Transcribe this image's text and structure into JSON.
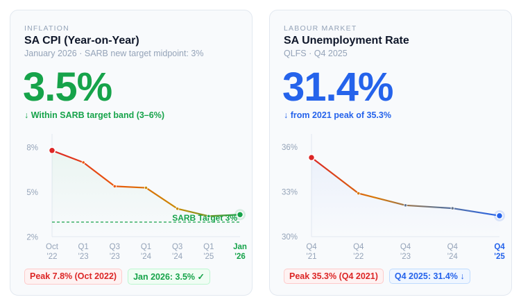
{
  "cards": [
    {
      "eyebrow": "INFLATION",
      "title": "SA CPI (Year-on-Year)",
      "subtitle": "January 2026 · SARB new target midpoint: 3%",
      "value": "3.5%",
      "value_color": "#16a34a",
      "delta": "↓ Within SARB target band (3–6%)",
      "badges": [
        "Peak 7.8% (Oct 2022)",
        "Jan 2026: 3.5% ✓"
      ]
    },
    {
      "eyebrow": "LABOUR MARKET",
      "title": "SA Unemployment Rate",
      "subtitle": "QLFS · Q4 2025",
      "value": "31.4%",
      "value_color": "#2563eb",
      "delta": "↓ from 2021 peak of 35.3%",
      "badges": [
        "Peak 35.3% (Q4 2021)",
        "Q4 2025: 31.4% ↓"
      ]
    }
  ],
  "chart_data": [
    {
      "type": "line",
      "categories": [
        [
          "Oct",
          "'22"
        ],
        [
          "Q1",
          "'23"
        ],
        [
          "Q3",
          "'23"
        ],
        [
          "Q1",
          "'24"
        ],
        [
          "Q3",
          "'24"
        ],
        [
          "Q1",
          "'25"
        ],
        [
          "Jan",
          "'26"
        ]
      ],
      "values": [
        7.8,
        7.0,
        5.4,
        5.3,
        3.9,
        3.4,
        3.5
      ],
      "yticks": [
        "8%",
        "5%",
        "2%"
      ],
      "ytick_values": [
        8,
        5,
        2
      ],
      "reference_line": {
        "value": 3,
        "label": "SARB Target 3%",
        "color": "#16a34a"
      },
      "colors": [
        "#dc2626",
        "#ea580c",
        "#ca8a04",
        "#16a34a"
      ]
    },
    {
      "type": "line",
      "categories": [
        [
          "Q4",
          "'21"
        ],
        [
          "Q4",
          "'22"
        ],
        [
          "Q4",
          "'23"
        ],
        [
          "Q4",
          "'24"
        ],
        [
          "Q4",
          "'25"
        ]
      ],
      "values": [
        35.3,
        32.9,
        32.1,
        31.9,
        31.4
      ],
      "yticks": [
        "36%",
        "33%",
        "30%"
      ],
      "ytick_values": [
        36,
        33,
        30
      ],
      "colors": [
        "#dc2626",
        "#d97706",
        "#64748b",
        "#2563eb"
      ]
    }
  ]
}
